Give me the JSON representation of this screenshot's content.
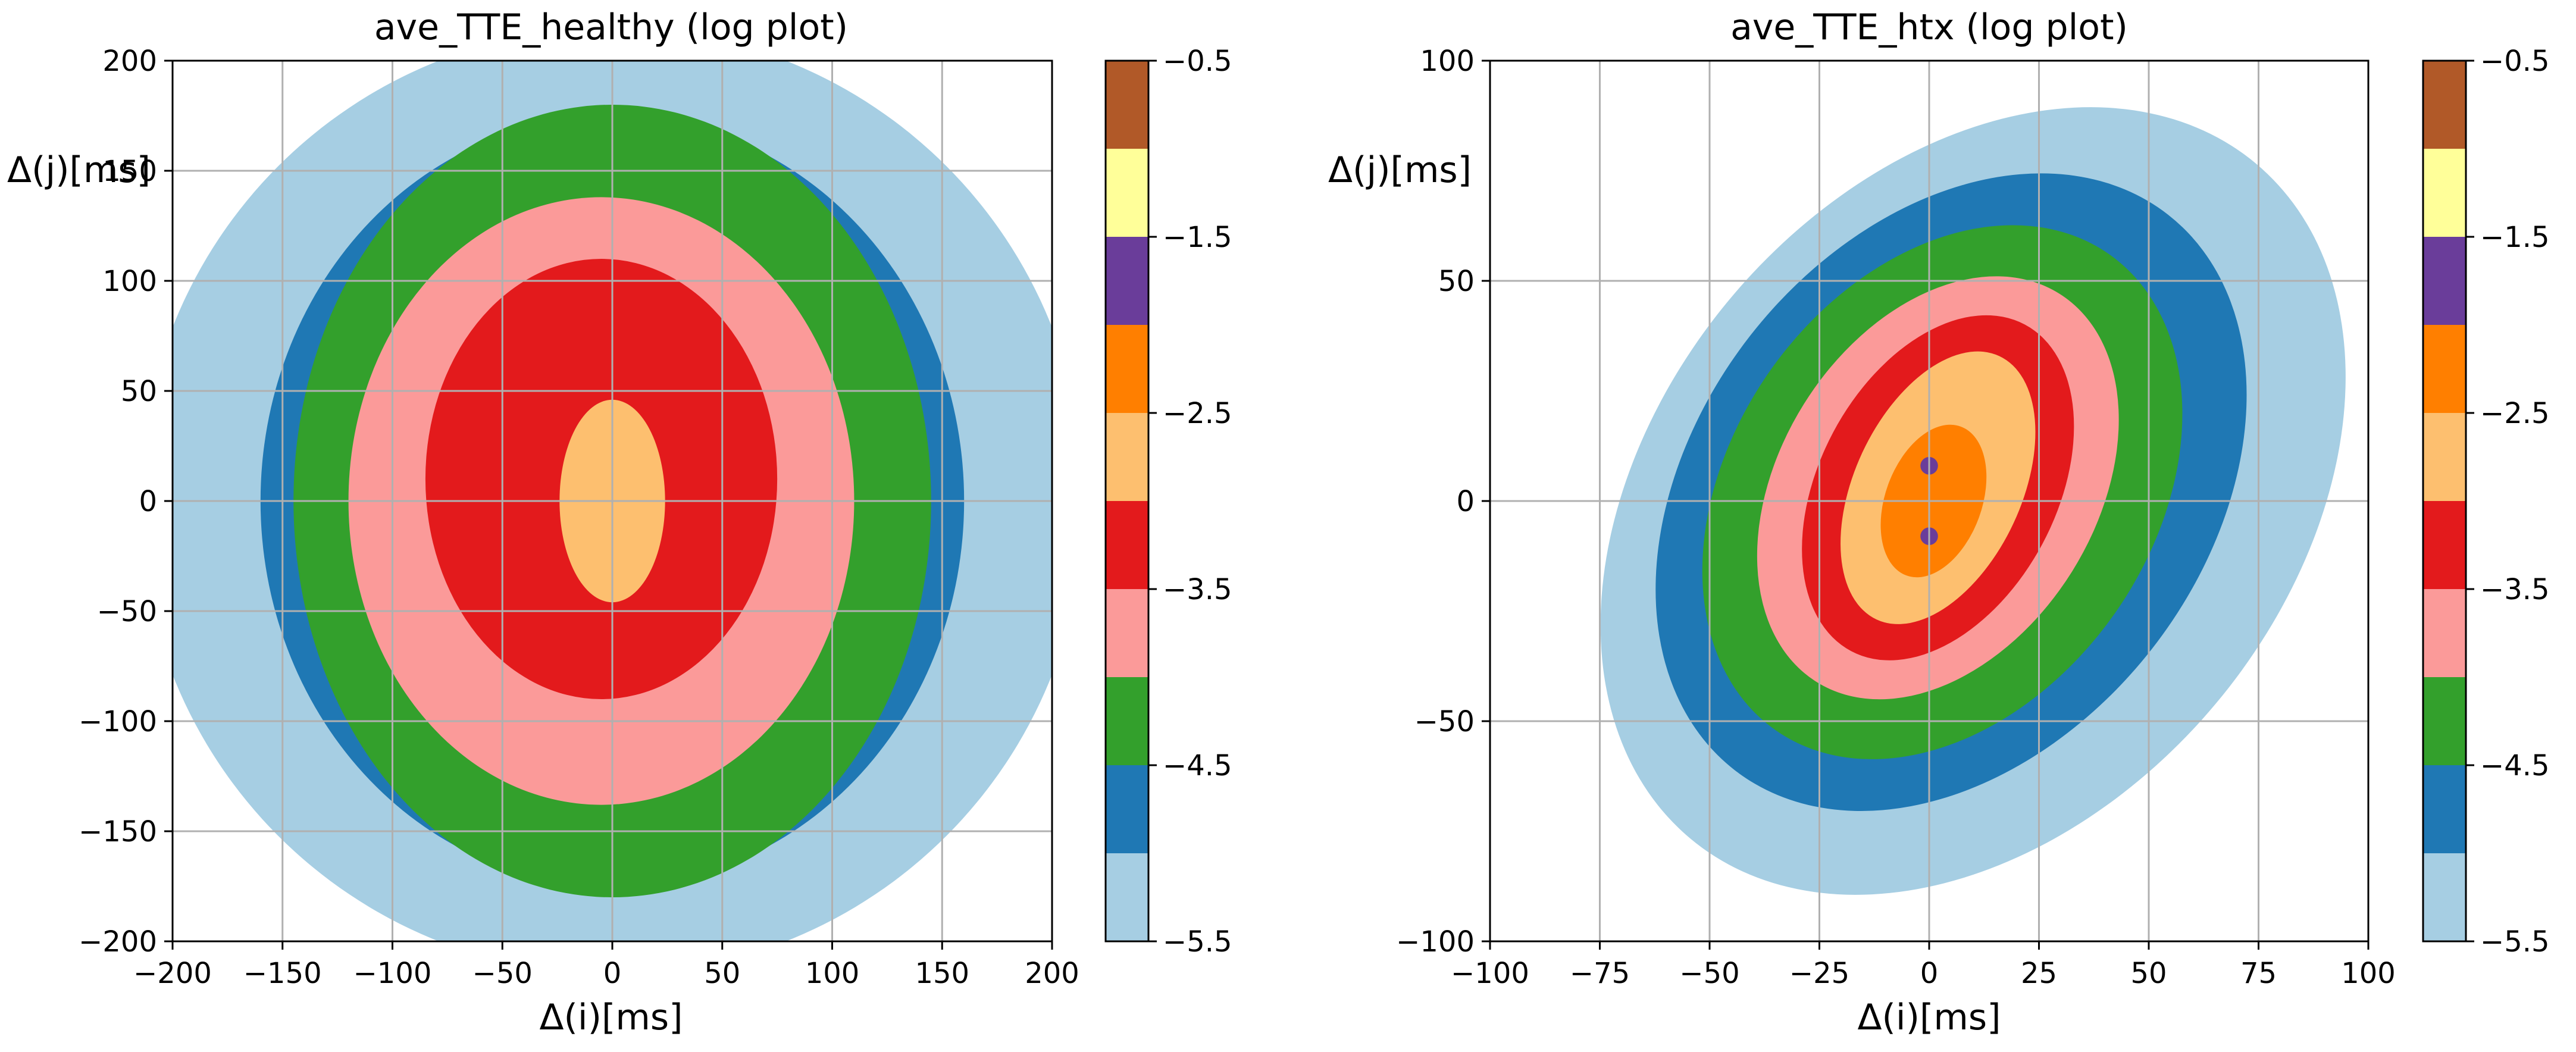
{
  "chart_data": [
    {
      "type": "contour",
      "title": "ave_TTE_healthy  (log plot)",
      "xlabel": "Δ(i)[ms]",
      "ylabel": "Δ(j)[ms]",
      "xlim": [
        -200,
        200
      ],
      "ylim": [
        -200,
        200
      ],
      "xticks": [
        -200,
        -150,
        -100,
        -50,
        0,
        50,
        100,
        150,
        200
      ],
      "xtick_labels": [
        "−200",
        "−150",
        "−100",
        "−50",
        "0",
        "50",
        "100",
        "150",
        "200"
      ],
      "yticks": [
        -200,
        -150,
        -100,
        -50,
        0,
        50,
        100,
        150,
        200
      ],
      "ytick_labels": [
        "−200",
        "−150",
        "−100",
        "−50",
        "0",
        "50",
        "100",
        "150",
        "200"
      ],
      "grid": true,
      "regions": [
        {
          "level": -5.5,
          "cx": 0,
          "cy": 0,
          "rx": 215,
          "ry": 215
        },
        {
          "level": -5.0,
          "cx": 0,
          "cy": 0,
          "rx": 160,
          "ry": 175
        },
        {
          "level": -4.5,
          "cx": 0,
          "cy": 0,
          "rx": 145,
          "ry": 180
        },
        {
          "level": -4.0,
          "cx": -5,
          "cy": 0,
          "rx": 115,
          "ry": 138
        },
        {
          "level": -3.5,
          "cx": -5,
          "cy": 10,
          "rx": 80,
          "ry": 100
        },
        {
          "level": -3.0,
          "cx": 0,
          "cy": 0,
          "rx": 24,
          "ry": 46
        }
      ],
      "colorbar": {
        "ticks": [
          -5.5,
          -4.5,
          -3.5,
          -2.5,
          -1.5,
          -0.5
        ],
        "tick_labels": [
          "−5.5",
          "−4.5",
          "−3.5",
          "−2.5",
          "−1.5",
          "−0.5"
        ]
      }
    },
    {
      "type": "contour",
      "title": "ave_TTE_htx (log plot)",
      "xlabel": "Δ(i)[ms]",
      "ylabel": "Δ(j)[ms]",
      "xlim": [
        -100,
        100
      ],
      "ylim": [
        -100,
        100
      ],
      "xticks": [
        -100,
        -75,
        -50,
        -25,
        0,
        25,
        50,
        75,
        100
      ],
      "xtick_labels": [
        "−100",
        "−75",
        "−50",
        "−25",
        "0",
        "25",
        "50",
        "75",
        "100"
      ],
      "yticks": [
        -100,
        -50,
        0,
        50,
        100
      ],
      "ytick_labels": [
        "−100",
        "−50",
        "0",
        "50",
        "100"
      ],
      "grid": true,
      "regions": [
        {
          "level": -5.5,
          "cx": 10,
          "cy": 0,
          "rx": 72,
          "ry": 100,
          "rot": 40
        },
        {
          "level": -5.0,
          "cx": 5,
          "cy": 2,
          "rx": 58,
          "ry": 80,
          "rot": 38
        },
        {
          "level": -4.5,
          "cx": 3,
          "cy": 2,
          "rx": 48,
          "ry": 66,
          "rot": 35
        },
        {
          "level": -4.0,
          "cx": 2,
          "cy": 3,
          "rx": 36,
          "ry": 52,
          "rot": 32
        },
        {
          "level": -3.5,
          "cx": 2,
          "cy": 3,
          "rx": 27,
          "ry": 42,
          "rot": 28
        },
        {
          "level": -3.0,
          "cx": 2,
          "cy": 3,
          "rx": 19,
          "ry": 33,
          "rot": 25
        },
        {
          "level": -2.5,
          "cx": 1,
          "cy": 0,
          "rx": 11,
          "ry": 18,
          "rot": 20
        },
        {
          "level": -2.0,
          "cx": 0,
          "cy": 8,
          "rx": 2,
          "ry": 2
        },
        {
          "level": -2.0,
          "cx": 0,
          "cy": -8,
          "rx": 2,
          "ry": 2
        }
      ],
      "colorbar": {
        "ticks": [
          -5.5,
          -4.5,
          -3.5,
          -2.5,
          -1.5,
          -0.5
        ],
        "tick_labels": [
          "−5.5",
          "−4.5",
          "−3.5",
          "−2.5",
          "−1.5",
          "−0.5"
        ]
      }
    }
  ],
  "colorbar_levels": [
    {
      "from": -5.5,
      "to": -5.0,
      "color": "#a6cee3"
    },
    {
      "from": -5.0,
      "to": -4.5,
      "color": "#1f78b4"
    },
    {
      "from": -4.5,
      "to": -4.0,
      "color": "#33a02c"
    },
    {
      "from": -4.0,
      "to": -3.5,
      "color": "#fb9a99"
    },
    {
      "from": -3.5,
      "to": -3.0,
      "color": "#e31a1c"
    },
    {
      "from": -3.0,
      "to": -2.5,
      "color": "#fdbf6f"
    },
    {
      "from": -2.5,
      "to": -2.0,
      "color": "#ff7f00"
    },
    {
      "from": -2.0,
      "to": -1.5,
      "color": "#6a3d9a"
    },
    {
      "from": -1.5,
      "to": -1.0,
      "color": "#ffff99"
    },
    {
      "from": -1.0,
      "to": -0.5,
      "color": "#b15928"
    }
  ]
}
